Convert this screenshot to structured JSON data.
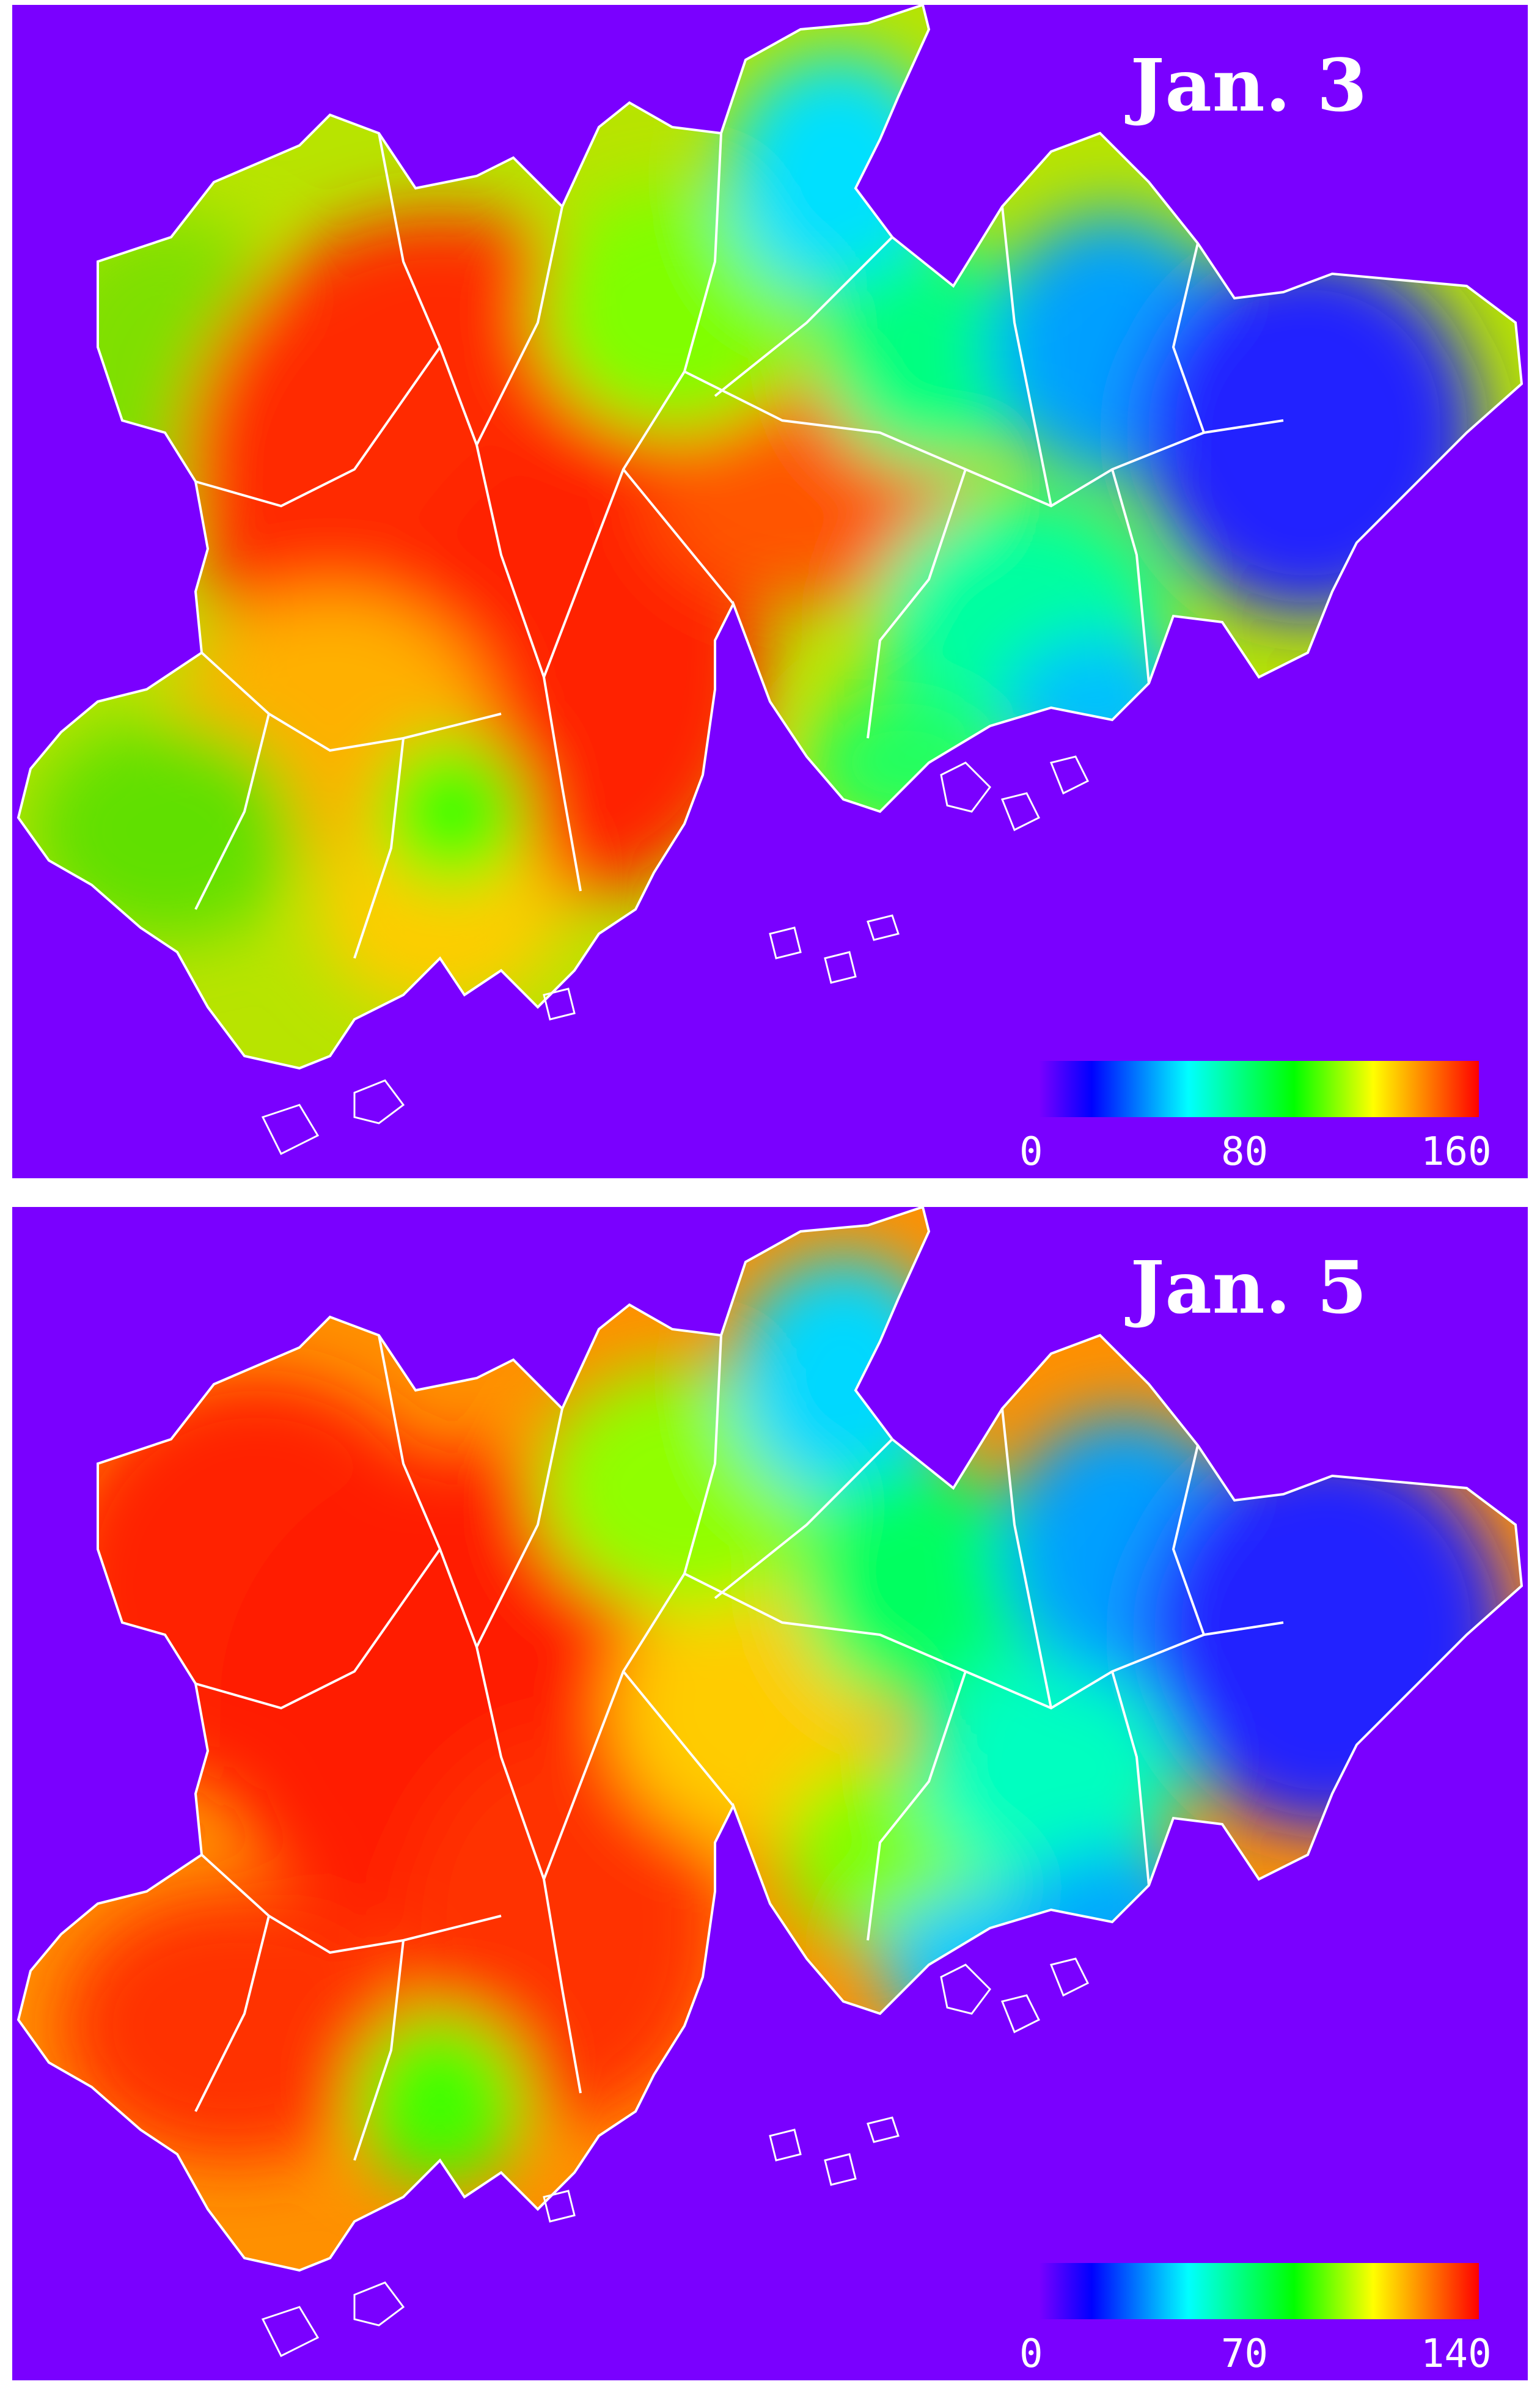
{
  "panels": [
    {
      "title": "Jan. 3",
      "legend": {
        "min": "0",
        "mid": "80",
        "max": "160"
      },
      "colors": {
        "background": "#7a00ff",
        "boundary": "#ffffff"
      }
    },
    {
      "title": "Jan. 5",
      "legend": {
        "min": "0",
        "mid": "70",
        "max": "140"
      },
      "colors": {
        "background": "#7a00ff",
        "boundary": "#ffffff"
      }
    }
  ]
}
